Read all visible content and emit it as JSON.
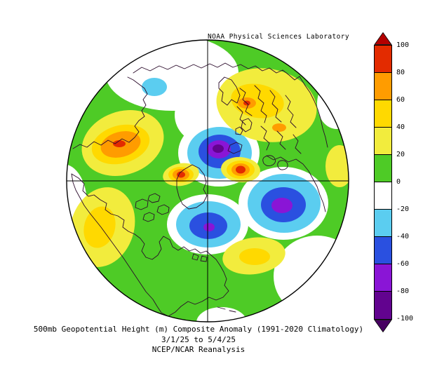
{
  "header": {
    "lab_title": "NOAA Physical Sciences Laboratory"
  },
  "captions": {
    "line1": "500mb Geopotential Height (m) Composite Anomaly (1991-2020 Climatology)",
    "line2": "3/1/25 to 5/4/25",
    "line3": "NCEP/NCAR Reanalysis"
  },
  "chart_data": {
    "type": "heatmap",
    "variant": "filled contour anomaly map, polar stereographic projection",
    "region": "Northern Hemisphere, pole-centered circular map with crosshair meridian lines",
    "title": "500mb Geopotential Height (m) Composite Anomaly (1991-2020 Climatology)",
    "date_range": "3/1/25 to 5/4/25",
    "dataset": "NCEP/NCAR Reanalysis",
    "lab": "NOAA Physical Sciences Laboratory",
    "units": "m",
    "colorbar": {
      "orientation": "vertical",
      "position": "right",
      "ticks": [
        100,
        80,
        60,
        40,
        20,
        0,
        -20,
        -40,
        -60,
        -80,
        -100
      ],
      "segments_top_to_bottom": [
        {
          "range": "80 to 100",
          "color": "#e32b00"
        },
        {
          "range": "60 to 80",
          "color": "#ff9c00"
        },
        {
          "range": "40 to 60",
          "color": "#ffd900"
        },
        {
          "range": "20 to 40",
          "color": "#f2ec3d"
        },
        {
          "range": "0 to 20",
          "color": "#4ecb26"
        },
        {
          "range": "-20 to 0",
          "color": "#ffffff"
        },
        {
          "range": "-40 to -20",
          "color": "#5bcdf0"
        },
        {
          "range": "-60 to -40",
          "color": "#2a50e0"
        },
        {
          "range": "-80 to -60",
          "color": "#8a15d6"
        },
        {
          "range": "-100 to -80",
          "color": "#62038f"
        }
      ],
      "over_arrow_color": "#b30000",
      "under_arrow_color": "#470061"
    },
    "palette": {
      "green": "#4ecb26",
      "yellow": "#f2ec3d",
      "gold": "#ffd900",
      "orange": "#ff9c00",
      "red": "#e32b00",
      "white": "#ffffff",
      "cyan": "#5bcdf0",
      "blue": "#2a50e0",
      "purple": "#8a15d6",
      "dark_purple": "#62038f",
      "coast": "#2b0b2b",
      "grid": "#000000"
    },
    "anomaly_centers": [
      {
        "sign": "positive",
        "peak_bin_m": "60 to 100",
        "screen_location": "left-center orange/red maximum"
      },
      {
        "sign": "positive",
        "peak_bin_m": "80 to 100",
        "screen_location": "small red core just left of map center"
      },
      {
        "sign": "positive",
        "peak_bin_m": "80 to 100",
        "screen_location": "small red core right of map center"
      },
      {
        "sign": "positive",
        "peak_bin_m": "40 to 80",
        "screen_location": "broad upper-right yellow/orange region"
      },
      {
        "sign": "positive",
        "peak_bin_m": "20 to 60",
        "screen_location": "lower-left and lower-middle yellow patches"
      },
      {
        "sign": "negative",
        "peak_bin_m": "-80 to -100",
        "screen_location": "purple low just above map center"
      },
      {
        "sign": "negative",
        "peak_bin_m": "-60 to -80",
        "screen_location": "purple/blue low right of center"
      },
      {
        "sign": "negative",
        "peak_bin_m": "-60 to -80",
        "screen_location": "blue low below center"
      },
      {
        "sign": "negative",
        "peak_bin_m": "-20 to -40",
        "screen_location": "small cyan patch near top"
      }
    ]
  }
}
